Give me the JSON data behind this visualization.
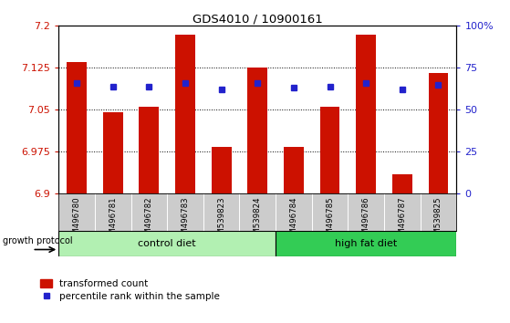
{
  "title": "GDS4010 / 10900161",
  "categories": [
    "GSM496780",
    "GSM496781",
    "GSM496782",
    "GSM496783",
    "GSM539823",
    "GSM539824",
    "GSM496784",
    "GSM496785",
    "GSM496786",
    "GSM496787",
    "GSM539825"
  ],
  "red_values": [
    7.135,
    7.045,
    7.055,
    7.185,
    6.983,
    7.125,
    6.983,
    7.055,
    7.185,
    6.935,
    7.115
  ],
  "blue_values": [
    66,
    64,
    64,
    66,
    62,
    66,
    63,
    64,
    66,
    62,
    65
  ],
  "ymin": 6.9,
  "ymax": 7.2,
  "yticks": [
    6.9,
    6.975,
    7.05,
    7.125,
    7.2
  ],
  "ytick_labels": [
    "6.9",
    "6.975",
    "7.05",
    "7.125",
    "7.2"
  ],
  "right_yticks": [
    0,
    25,
    50,
    75,
    100
  ],
  "right_ytick_labels": [
    "0",
    "25",
    "50",
    "75",
    "100%"
  ],
  "control_color": "#b2f0b2",
  "high_fat_color": "#33cc55",
  "bar_color": "#cc1100",
  "blue_color": "#2222cc",
  "plot_bg_color": "#ffffff",
  "legend_red_label": "transformed count",
  "legend_blue_label": "percentile rank within the sample",
  "group_label": "growth protocol",
  "control_label": "control diet",
  "high_fat_label": "high fat diet",
  "ctrl_count": 6,
  "hf_count": 5
}
